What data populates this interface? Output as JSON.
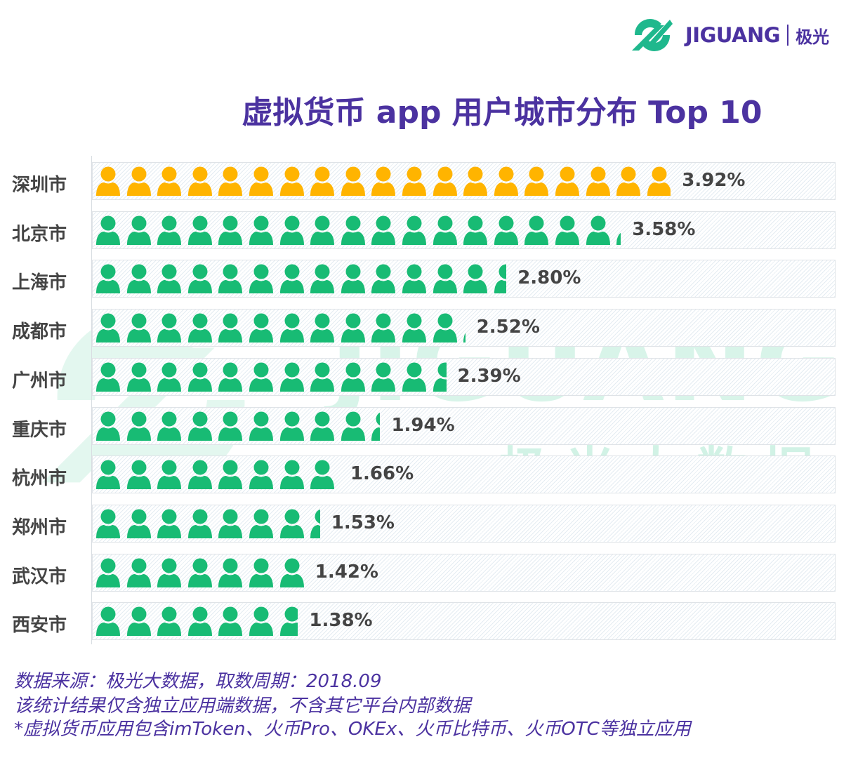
{
  "logo": {
    "word": "JIGUANG",
    "cn": "极光"
  },
  "watermark": {
    "word": "JIGUANG",
    "cn": "极光大数据"
  },
  "colors": {
    "highlight": "#ffb400",
    "default": "#18bb74",
    "title": "#4b32a0"
  },
  "icon": "person-icon",
  "chart_data": {
    "type": "bar",
    "title": "虚拟货币 app 用户城市分布 Top 10",
    "categories": [
      "深圳市",
      "北京市",
      "上海市",
      "成都市",
      "广州市",
      "重庆市",
      "杭州市",
      "郑州市",
      "武汉市",
      "西安市"
    ],
    "values": [
      3.92,
      3.58,
      2.8,
      2.52,
      2.39,
      1.94,
      1.66,
      1.53,
      1.42,
      1.38
    ],
    "labels": [
      "3.92%",
      "3.58%",
      "2.80%",
      "2.52%",
      "2.39%",
      "1.94%",
      "1.66%",
      "1.53%",
      "1.42%",
      "1.38%"
    ],
    "unit": "%",
    "orientation": "horizontal",
    "highlighted": "深圳市"
  },
  "footer": [
    "数据来源：极光大数据，取数周期：2018.09",
    "该统计结果仅含独立应用端数据，不含其它平台内部数据",
    " *虚拟货币应用包含imToken、火币Pro、OKEx、火币比特币、火币OTC等独立应用"
  ]
}
